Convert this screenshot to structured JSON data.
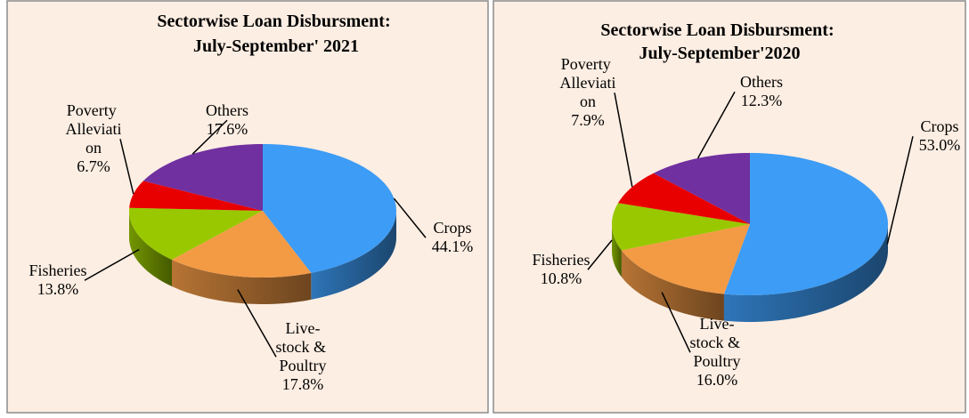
{
  "chart_data": [
    {
      "type": "pie",
      "title": "Sectorwise Loan Disbursment: July-September' 2021",
      "categories": [
        "Crops",
        "Live-stock & Poultry",
        "Fisheries",
        "Poverty Alleviation",
        "Others"
      ],
      "values": [
        44.1,
        17.8,
        13.8,
        6.7,
        17.6
      ],
      "value_labels": [
        "44.1%",
        "17.8%",
        "13.8%",
        "6.7%",
        "17.6%"
      ],
      "colors": [
        "#3d9cf5",
        "#f39a45",
        "#99c800",
        "#e80000",
        "#7030a0"
      ]
    },
    {
      "type": "pie",
      "title": "Sectorwise Loan Disbursment: July-September'2020",
      "categories": [
        "Crops",
        "Live-stock & Poultry",
        "Fisheries",
        "Poverty Alleviation",
        "Others"
      ],
      "values": [
        53.0,
        16.0,
        10.8,
        7.9,
        12.3
      ],
      "value_labels": [
        "53.0%",
        "16.0%",
        "10.8%",
        "7.9%",
        "12.3%"
      ],
      "colors": [
        "#3d9cf5",
        "#f39a45",
        "#99c800",
        "#e80000",
        "#7030a0"
      ]
    }
  ]
}
